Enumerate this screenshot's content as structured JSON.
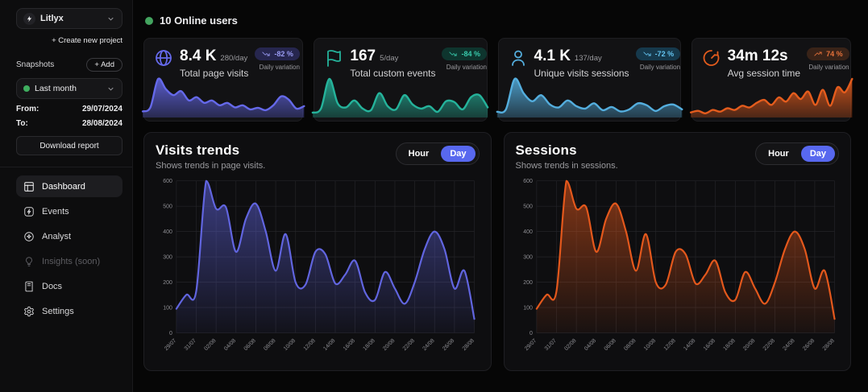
{
  "colors": {
    "accent_indigo": "#6569ea",
    "accent_teal": "#25b39b",
    "accent_blue": "#54aede",
    "accent_orange": "#e45c1d",
    "online_green": "#43a45f",
    "day_button_blue": "#5868ef"
  },
  "sidebar": {
    "project": {
      "name": "Litlyx"
    },
    "create_project_label": "+ Create new project",
    "snapshots": {
      "label": "Snapshots",
      "add_label": "+ Add",
      "selected": "Last month",
      "from_label": "From:",
      "from_value": "29/07/2024",
      "to_label": "To:",
      "to_value": "28/08/2024",
      "download_label": "Download report"
    },
    "nav": [
      {
        "label": "Dashboard",
        "icon": "dashboard-icon",
        "active": true
      },
      {
        "label": "Events",
        "icon": "zap-icon"
      },
      {
        "label": "Analyst",
        "icon": "ai-sparkle-icon"
      },
      {
        "label": "Insights (soon)",
        "icon": "lightbulb-icon",
        "disabled": true
      },
      {
        "label": "Docs",
        "icon": "book-icon"
      },
      {
        "label": "Settings",
        "icon": "gear-icon"
      }
    ]
  },
  "header": {
    "online_users": "10 Online users"
  },
  "stat_cards": [
    {
      "name": "total-page-visits",
      "icon": "globe-icon",
      "value": "8.4 K",
      "per_day": "280/day",
      "title": "Total page visits",
      "variation": "-82 %",
      "variation_label": "Daily variation",
      "trend": "down",
      "color": "#6569ea",
      "sparkline": [
        15,
        25,
        95,
        70,
        55,
        65,
        42,
        50,
        36,
        42,
        30,
        36,
        25,
        30,
        20,
        24,
        18,
        30,
        52,
        44,
        22,
        28
      ]
    },
    {
      "name": "total-custom-events",
      "icon": "flag-icon",
      "value": "167",
      "per_day": "5/day",
      "title": "Total custom events",
      "variation": "-84 %",
      "variation_label": "Daily variation",
      "trend": "down",
      "color": "#25b39b",
      "sparkline": [
        12,
        22,
        95,
        35,
        25,
        42,
        22,
        18,
        60,
        28,
        20,
        55,
        32,
        22,
        28,
        14,
        40,
        38,
        20,
        50,
        55,
        25
      ]
    },
    {
      "name": "unique-visits-sessions",
      "icon": "user-icon",
      "value": "4.1 K",
      "per_day": "137/day",
      "title": "Unique visits sessions",
      "variation": "-72 %",
      "variation_label": "Daily variation",
      "trend": "down",
      "color": "#54aede",
      "sparkline": [
        14,
        20,
        95,
        60,
        40,
        55,
        32,
        25,
        42,
        28,
        22,
        35,
        18,
        26,
        15,
        20,
        35,
        30,
        16,
        28,
        32,
        20
      ]
    },
    {
      "name": "avg-session-time",
      "icon": "timer-icon",
      "value": "34m 12s",
      "per_day": "",
      "title": "Avg session time",
      "variation": "74 %",
      "variation_label": "Daily variation",
      "trend": "up",
      "color": "#e45c1d",
      "sparkline": [
        12,
        16,
        10,
        18,
        14,
        22,
        18,
        28,
        24,
        35,
        42,
        30,
        48,
        38,
        58,
        44,
        62,
        30,
        66,
        28,
        72,
        60,
        92
      ]
    }
  ],
  "interval_toggle": {
    "options": [
      "Hour",
      "Day"
    ],
    "selected": "Day"
  },
  "chart_data": [
    {
      "type": "area",
      "title": "Visits trends",
      "subtitle": "Shows trends in page visits.",
      "color": "#6165e0",
      "categories": [
        "29/07",
        "30/07",
        "31/07",
        "01/08",
        "02/08",
        "03/08",
        "04/08",
        "05/08",
        "06/08",
        "07/08",
        "08/08",
        "09/08",
        "10/08",
        "11/08",
        "12/08",
        "13/08",
        "14/08",
        "15/08",
        "16/08",
        "17/08",
        "18/08",
        "19/08",
        "20/08",
        "21/08",
        "22/08",
        "23/08",
        "24/08",
        "25/08",
        "26/08",
        "27/08",
        "28/08"
      ],
      "values": [
        95,
        150,
        165,
        600,
        490,
        495,
        320,
        450,
        510,
        400,
        245,
        390,
        200,
        190,
        320,
        310,
        195,
        230,
        285,
        160,
        130,
        240,
        175,
        115,
        200,
        330,
        400,
        330,
        175,
        245,
        55
      ],
      "xtick_every": 2,
      "yticks": [
        0,
        100,
        200,
        300,
        400,
        500,
        600
      ],
      "ylim": [
        0,
        600
      ],
      "grid": true,
      "legend": false
    },
    {
      "type": "area",
      "title": "Sessions",
      "subtitle": "Shows trends in sessions.",
      "color": "#e4581c",
      "categories": [
        "29/07",
        "30/07",
        "31/07",
        "01/08",
        "02/08",
        "03/08",
        "04/08",
        "05/08",
        "06/08",
        "07/08",
        "08/08",
        "09/08",
        "10/08",
        "11/08",
        "12/08",
        "13/08",
        "14/08",
        "15/08",
        "16/08",
        "17/08",
        "18/08",
        "19/08",
        "20/08",
        "21/08",
        "22/08",
        "23/08",
        "24/08",
        "25/08",
        "26/08",
        "27/08",
        "28/08"
      ],
      "values": [
        95,
        150,
        165,
        600,
        490,
        495,
        320,
        450,
        510,
        400,
        245,
        390,
        200,
        190,
        320,
        310,
        195,
        230,
        285,
        160,
        130,
        240,
        175,
        115,
        200,
        330,
        400,
        330,
        175,
        245,
        55
      ],
      "xtick_every": 2,
      "yticks": [
        0,
        100,
        200,
        300,
        400,
        500,
        600
      ],
      "ylim": [
        0,
        600
      ],
      "grid": true,
      "legend": false
    }
  ]
}
